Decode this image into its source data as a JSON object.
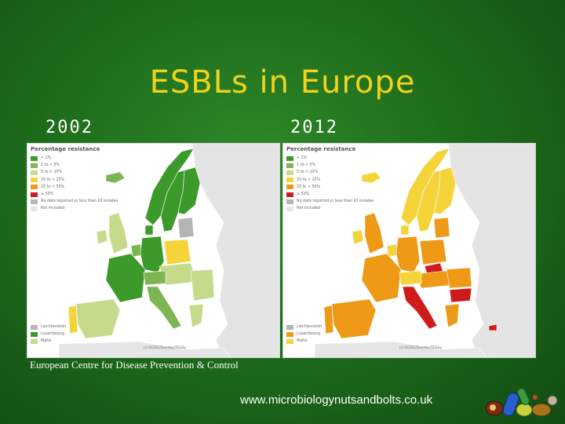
{
  "slide": {
    "title": "ESBLs in Europe",
    "years": [
      "2002",
      "2012"
    ],
    "source": "European Centre for Disease Prevention & Control",
    "url": "www.microbiologynutsandbolts.co.uk"
  },
  "legend": {
    "title": "Percentage resistance",
    "items": [
      {
        "label": "< 1%",
        "color": "#3c9a2a"
      },
      {
        "label": "1 to < 5%",
        "color": "#7cb552"
      },
      {
        "label": "5 to < 10%",
        "color": "#c6da8c"
      },
      {
        "label": "10 to < 25%",
        "color": "#f5d43a"
      },
      {
        "label": "25 to < 50%",
        "color": "#ee9a17"
      },
      {
        "label": "≥ 50%",
        "color": "#d01b1b"
      },
      {
        "label": "No data reported or less than 10 isolates",
        "color": "#b5b5b5"
      },
      {
        "label": "Not included",
        "color": "#e6e6e6"
      }
    ],
    "small_states": [
      "Liechtenstein",
      "Luxembourg",
      "Malta"
    ],
    "copyright": "(c) ECDC/Dundas/TESSy"
  },
  "colors": {
    "not_included": "#e4e4e4",
    "no_data": "#b5b5b5"
  }
}
